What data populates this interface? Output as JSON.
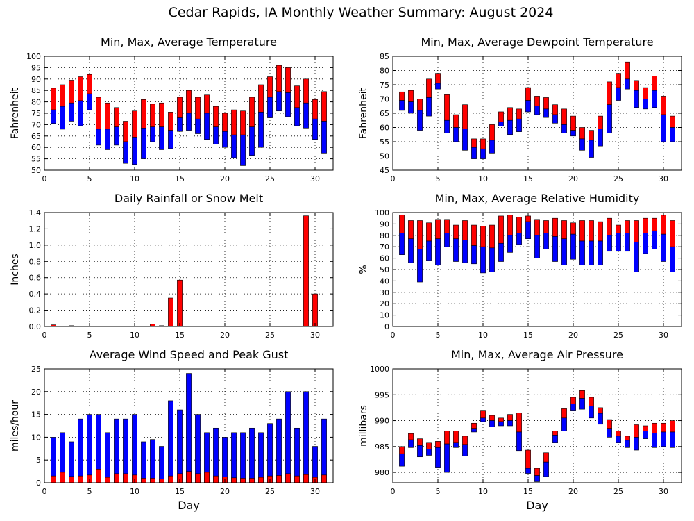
{
  "page": {
    "title": "Cedar Rapids, IA Monthly Weather Summary: August 2024",
    "xlabel": "Day",
    "colors": {
      "red": "#ff0000",
      "blue": "#0000ff",
      "grid": "#000000",
      "background": "#ffffff"
    }
  },
  "chart_data": [
    {
      "id": "temperature",
      "type": "bar",
      "subtype": "floating-range",
      "title": "Min, Max, Average Temperature",
      "ylabel": "Fahrenheit",
      "xlabel": "",
      "xlim": [
        0,
        32
      ],
      "xticks": [
        0,
        5,
        10,
        15,
        20,
        25,
        30
      ],
      "ylim": [
        50,
        100
      ],
      "yticks": [
        50,
        55,
        60,
        65,
        70,
        75,
        80,
        85,
        90,
        95,
        100
      ],
      "grid": "dotted",
      "x": [
        1,
        2,
        3,
        4,
        5,
        6,
        7,
        8,
        9,
        10,
        11,
        12,
        13,
        14,
        15,
        16,
        17,
        18,
        19,
        20,
        21,
        22,
        23,
        24,
        25,
        26,
        27,
        28,
        29,
        30,
        31
      ],
      "series": [
        {
          "key": "max",
          "values": [
            86,
            87.5,
            89.5,
            91,
            92,
            82,
            79.5,
            77.5,
            71.5,
            76,
            81,
            79,
            79.5,
            75.5,
            82,
            85,
            82,
            83,
            78,
            75,
            76.5,
            76,
            82,
            87.5,
            91,
            96,
            95,
            87,
            90,
            81,
            84.5
          ]
        },
        {
          "key": "avg",
          "values": [
            76.5,
            78,
            79.5,
            80.5,
            83.5,
            68,
            68,
            69,
            62.5,
            64.5,
            68.5,
            69,
            69,
            67.5,
            73,
            75,
            72.5,
            75,
            69,
            67,
            65.5,
            65.5,
            69,
            75.5,
            82,
            84.5,
            84,
            77.5,
            79.5,
            72.5,
            71.5
          ]
        },
        {
          "key": "min",
          "values": [
            70.5,
            68,
            71.5,
            69.5,
            76.5,
            61,
            59,
            61,
            53,
            52.5,
            55,
            62.5,
            59,
            59.5,
            67,
            67.5,
            66,
            63.5,
            61.5,
            60,
            55.5,
            52,
            56.5,
            60,
            73,
            76,
            73.5,
            69.5,
            68.5,
            63.5,
            57.5
          ]
        }
      ]
    },
    {
      "id": "dewpoint",
      "type": "bar",
      "subtype": "floating-range",
      "title": "Min, Max, Average Dewpoint Temperature",
      "ylabel": "Fahrenheit",
      "xlabel": "",
      "xlim": [
        0,
        32
      ],
      "xticks": [
        0,
        5,
        10,
        15,
        20,
        25,
        30
      ],
      "ylim": [
        45,
        85
      ],
      "yticks": [
        45,
        50,
        55,
        60,
        65,
        70,
        75,
        80,
        85
      ],
      "grid": "dotted",
      "x": [
        1,
        2,
        3,
        4,
        5,
        6,
        7,
        8,
        9,
        10,
        11,
        12,
        13,
        14,
        15,
        16,
        17,
        18,
        19,
        20,
        21,
        22,
        23,
        24,
        25,
        26,
        27,
        28,
        29,
        30,
        31
      ],
      "series": [
        {
          "key": "max",
          "values": [
            72.5,
            73,
            70,
            77,
            79,
            71.5,
            64.5,
            68,
            56,
            56,
            61,
            65.5,
            67,
            66.5,
            74,
            71,
            70.5,
            68,
            66.5,
            64,
            60,
            59,
            64,
            76,
            79,
            83,
            76.5,
            74,
            78,
            71,
            64
          ]
        },
        {
          "key": "avg",
          "values": [
            69.5,
            69,
            66,
            70.5,
            75.5,
            62.5,
            60,
            59.5,
            53,
            52.5,
            55.5,
            62,
            62.5,
            63,
            69.5,
            67.5,
            66.5,
            64.5,
            61,
            59,
            56,
            55.5,
            59.5,
            68,
            74,
            77,
            73,
            70,
            73,
            64.5,
            60
          ]
        },
        {
          "key": "min",
          "values": [
            66,
            65,
            59,
            64,
            73.5,
            58,
            55,
            52,
            49,
            49,
            51,
            60.5,
            57.5,
            58.5,
            65.5,
            64.5,
            63.5,
            61.5,
            58,
            57,
            52,
            49.5,
            53.5,
            58,
            69.5,
            73.5,
            67,
            66.5,
            67,
            55,
            55
          ]
        }
      ]
    },
    {
      "id": "rainfall",
      "type": "bar",
      "title": "Daily Rainfall or Snow Melt",
      "ylabel": "Inches",
      "xlabel": "",
      "xlim": [
        0,
        32
      ],
      "xticks": [
        0,
        5,
        10,
        15,
        20,
        25,
        30
      ],
      "ylim": [
        0,
        1.4
      ],
      "yticks": [
        0,
        0.2,
        0.4,
        0.6,
        0.8,
        1.0,
        1.2,
        1.4
      ],
      "ytick_labels": [
        "0.0",
        "0.2",
        "0.4",
        "0.6",
        "0.8",
        "1.0",
        "1.2",
        "1.4"
      ],
      "grid": "dotted",
      "x": [
        1,
        2,
        3,
        4,
        5,
        6,
        7,
        8,
        9,
        10,
        11,
        12,
        13,
        14,
        15,
        16,
        17,
        18,
        19,
        20,
        21,
        22,
        23,
        24,
        25,
        26,
        27,
        28,
        29,
        30,
        31
      ],
      "values": [
        0.02,
        0,
        0.01,
        0,
        0,
        0,
        0,
        0,
        0,
        0,
        0,
        0.03,
        0.01,
        0.35,
        0.57,
        0,
        0,
        0,
        0,
        0,
        0,
        0,
        0,
        0,
        0,
        0,
        0,
        0,
        1.36,
        0.4,
        0
      ]
    },
    {
      "id": "humidity",
      "type": "bar",
      "subtype": "floating-range",
      "title": "Min, Max, Average Relative Humidity",
      "ylabel": "%",
      "xlabel": "",
      "xlim": [
        0,
        32
      ],
      "xticks": [
        0,
        5,
        10,
        15,
        20,
        25,
        30
      ],
      "ylim": [
        0,
        100
      ],
      "yticks": [
        0,
        10,
        20,
        30,
        40,
        50,
        60,
        70,
        80,
        90,
        100
      ],
      "grid": "dotted",
      "x": [
        1,
        2,
        3,
        4,
        5,
        6,
        7,
        8,
        9,
        10,
        11,
        12,
        13,
        14,
        15,
        16,
        17,
        18,
        19,
        20,
        21,
        22,
        23,
        24,
        25,
        26,
        27,
        28,
        29,
        30,
        31
      ],
      "series": [
        {
          "key": "max",
          "values": [
            98,
            93,
            93,
            91,
            94,
            94,
            89,
            93,
            89,
            88,
            89,
            97,
            98,
            96,
            97,
            94,
            93,
            95,
            93,
            91,
            93,
            93,
            92,
            95,
            89,
            93,
            93,
            95,
            95,
            98,
            93
          ]
        },
        {
          "key": "avg",
          "values": [
            82,
            77,
            68,
            75,
            77,
            82,
            77,
            76,
            71,
            70,
            69,
            73,
            80,
            82,
            92,
            80,
            82,
            79,
            77,
            81,
            75,
            75,
            75,
            80,
            82,
            82,
            74,
            82,
            84,
            81,
            70
          ]
        },
        {
          "key": "min",
          "values": [
            63,
            56,
            39,
            58,
            54,
            70,
            57,
            56,
            55,
            47,
            48,
            57,
            65,
            72,
            77,
            60,
            68,
            57,
            54,
            59,
            54,
            54,
            54,
            66,
            66,
            66,
            48,
            64,
            68,
            57,
            48
          ]
        }
      ]
    },
    {
      "id": "wind",
      "type": "bar",
      "subtype": "stacked-overlay",
      "title": "Average Wind Speed and Peak Gust",
      "ylabel": "miles/hour",
      "xlabel": "Day",
      "xlim": [
        0,
        32
      ],
      "xticks": [
        0,
        5,
        10,
        15,
        20,
        25,
        30
      ],
      "ylim": [
        0,
        25
      ],
      "yticks": [
        0,
        5,
        10,
        15,
        20,
        25
      ],
      "grid": "dotted",
      "x": [
        1,
        2,
        3,
        4,
        5,
        6,
        7,
        8,
        9,
        10,
        11,
        12,
        13,
        14,
        15,
        16,
        17,
        18,
        19,
        20,
        21,
        22,
        23,
        24,
        25,
        26,
        27,
        28,
        29,
        30,
        31
      ],
      "series": [
        {
          "key": "peak_gust",
          "values": [
            10,
            11,
            9,
            14,
            15,
            15,
            11,
            14,
            14,
            15,
            9,
            9.5,
            8,
            18,
            16,
            24,
            15,
            11,
            12,
            10,
            11,
            11,
            12,
            11,
            13,
            14,
            20,
            12,
            20,
            8,
            14
          ]
        },
        {
          "key": "avg_speed",
          "values": [
            1.5,
            2.3,
            1.4,
            1.5,
            1.7,
            3,
            1.2,
            2,
            2,
            1.7,
            1,
            1,
            0.8,
            1.5,
            2,
            2.5,
            2,
            2.3,
            1.5,
            1.3,
            1.1,
            1,
            1,
            1.2,
            1.5,
            1.6,
            2,
            1.5,
            1.8,
            1.2,
            1.7
          ]
        }
      ]
    },
    {
      "id": "pressure",
      "type": "bar",
      "subtype": "floating-range",
      "title": "Min, Max, Average Air Pressure",
      "ylabel": "millibars",
      "xlabel": "Day",
      "xlim": [
        0,
        32
      ],
      "xticks": [
        0,
        5,
        10,
        15,
        20,
        25,
        30
      ],
      "ylim": [
        978,
        1000
      ],
      "yticks": [
        980,
        985,
        990,
        995,
        1000
      ],
      "grid": "dotted",
      "x": [
        1,
        2,
        3,
        4,
        5,
        6,
        7,
        8,
        9,
        10,
        11,
        12,
        13,
        14,
        15,
        16,
        17,
        18,
        19,
        20,
        21,
        22,
        23,
        24,
        25,
        26,
        27,
        28,
        29,
        30,
        31
      ],
      "series": [
        {
          "key": "max",
          "values": [
            985,
            987.5,
            986.5,
            985.8,
            986,
            988,
            988,
            987,
            989.5,
            992,
            991,
            990.5,
            991.2,
            991.5,
            984.3,
            980.8,
            983.8,
            988,
            992.3,
            994.5,
            995.8,
            994.5,
            992.5,
            990.2,
            988,
            987,
            989.2,
            989,
            989.5,
            989.5,
            990
          ]
        },
        {
          "key": "avg",
          "values": [
            983.6,
            986.3,
            985.2,
            984.5,
            984.8,
            985.5,
            985.8,
            985.4,
            988.5,
            990.5,
            990,
            989.8,
            990,
            987.8,
            980.8,
            979.4,
            982,
            987.2,
            990.5,
            993.2,
            994.3,
            992.8,
            991.4,
            988.5,
            987,
            986.2,
            986.8,
            988,
            987.6,
            987.8,
            987.8
          ]
        },
        {
          "key": "min",
          "values": [
            981.2,
            984.8,
            983,
            983.3,
            981,
            980,
            984.8,
            983.2,
            987.8,
            989.8,
            988.8,
            989,
            989,
            984.2,
            979.8,
            978.2,
            979.2,
            985.8,
            988,
            992,
            992.2,
            990.5,
            989.3,
            986.8,
            985.8,
            984.8,
            984.3,
            986.5,
            984.8,
            985,
            984.8
          ]
        }
      ]
    }
  ]
}
